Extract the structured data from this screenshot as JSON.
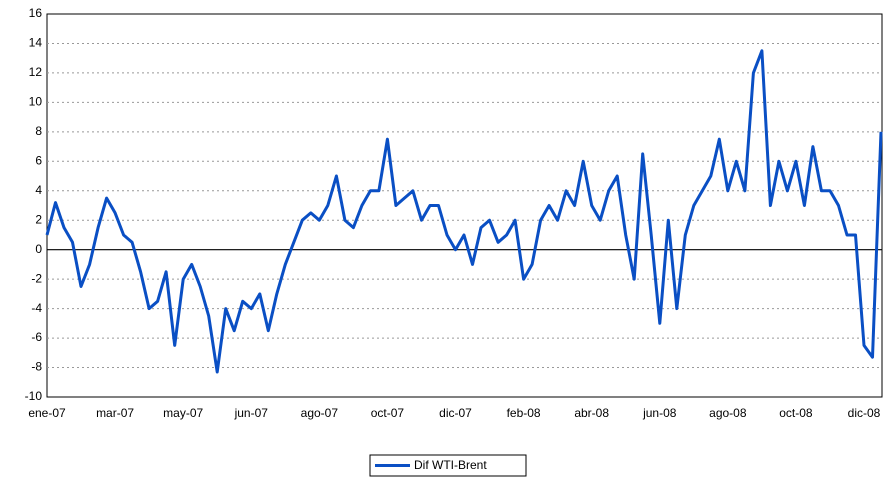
{
  "chart_data": {
    "type": "line",
    "categories": [
      "ene-07",
      null,
      null,
      null,
      null,
      null,
      null,
      null,
      "mar-07",
      null,
      null,
      null,
      null,
      null,
      null,
      null,
      "may-07",
      null,
      null,
      null,
      null,
      null,
      null,
      null,
      "jun-07",
      null,
      null,
      null,
      null,
      null,
      null,
      null,
      "ago-07",
      null,
      null,
      null,
      null,
      null,
      null,
      null,
      "oct-07",
      null,
      null,
      null,
      null,
      null,
      null,
      null,
      "dic-07",
      null,
      null,
      null,
      null,
      null,
      null,
      null,
      "feb-08",
      null,
      null,
      null,
      null,
      null,
      null,
      null,
      "abr-08",
      null,
      null,
      null,
      null,
      null,
      null,
      null,
      "jun-08",
      null,
      null,
      null,
      null,
      null,
      null,
      null,
      "ago-08",
      null,
      null,
      null,
      null,
      null,
      null,
      null,
      "oct-08",
      null,
      null,
      null,
      null,
      null,
      null,
      null,
      "dic-08",
      null,
      null
    ],
    "series": [
      {
        "name": "Dif WTI-Brent",
        "color": "#0a4fc4",
        "values": [
          1,
          3.2,
          1.5,
          0.5,
          -2.5,
          -1,
          1.5,
          3.5,
          2.5,
          1,
          0.5,
          -1.5,
          -4,
          -3.5,
          -1.5,
          -6.5,
          -2,
          -1,
          -2.5,
          -4.5,
          -8.3,
          -4,
          -5.5,
          -3.5,
          -4,
          -3,
          -5.5,
          -3,
          -1,
          0.5,
          2,
          2.5,
          2,
          3,
          5,
          2,
          1.5,
          3,
          4,
          4,
          7.5,
          3,
          3.5,
          4,
          2,
          3,
          3,
          1,
          0,
          1,
          -1,
          1.5,
          2,
          0.5,
          1,
          2,
          -2,
          -1,
          2,
          3,
          2,
          4,
          3,
          6,
          3,
          2,
          4,
          5,
          1,
          -2,
          6.5,
          1,
          -5,
          2,
          -4,
          1,
          3,
          4,
          5,
          7.5,
          4,
          6,
          4,
          12,
          13.5,
          3,
          6,
          4,
          6,
          3,
          7,
          4,
          4,
          3,
          1,
          1,
          -6.5,
          -7.3,
          8
        ]
      }
    ],
    "ylim": [
      -10,
      16
    ],
    "yticks": [
      -10,
      -8,
      -6,
      -4,
      -2,
      0,
      2,
      4,
      6,
      8,
      10,
      12,
      14,
      16
    ],
    "grid": true,
    "legend": "bottom"
  }
}
